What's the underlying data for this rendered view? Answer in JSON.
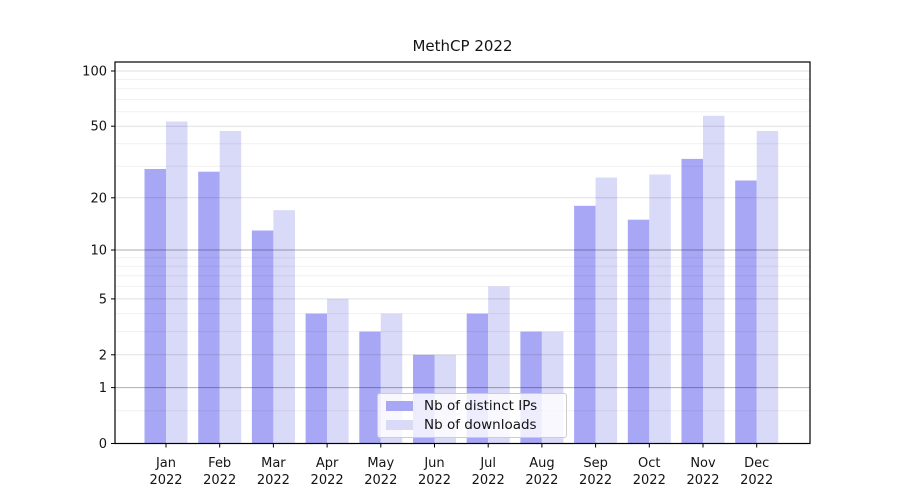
{
  "chart_data": {
    "type": "bar",
    "title": "MethCP 2022",
    "categories": [
      "Jan",
      "Feb",
      "Mar",
      "Apr",
      "May",
      "Jun",
      "Jul",
      "Aug",
      "Sep",
      "Oct",
      "Nov",
      "Dec"
    ],
    "x_tick_second_line": "2022",
    "series": [
      {
        "name": "Nb of distinct IPs",
        "color": "#a7a7f5",
        "values": [
          29,
          28,
          13,
          4,
          3,
          2,
          4,
          3,
          18,
          15,
          33,
          25
        ]
      },
      {
        "name": "Nb of downloads",
        "color": "#d9d9f8",
        "values": [
          53,
          47,
          17,
          5,
          4,
          2,
          6,
          3,
          26,
          27,
          57,
          47
        ]
      }
    ],
    "yscale": "log10(1+v)",
    "yticks": [
      0,
      1,
      2,
      5,
      10,
      20,
      50,
      100
    ],
    "minor_yticks": [
      0.5,
      3,
      4,
      6,
      7,
      8,
      9,
      30,
      40,
      60,
      70,
      80,
      90
    ],
    "emphasized_gridlines": [
      1,
      10
    ],
    "ylim": [
      0,
      112
    ],
    "grid": true,
    "grid_above_bars": true,
    "legend_position": "lower center",
    "xlabel": "",
    "ylabel": ""
  },
  "style_colors": {
    "axis": "#000000",
    "text": "#141414",
    "legend_border": "#cccccc"
  }
}
